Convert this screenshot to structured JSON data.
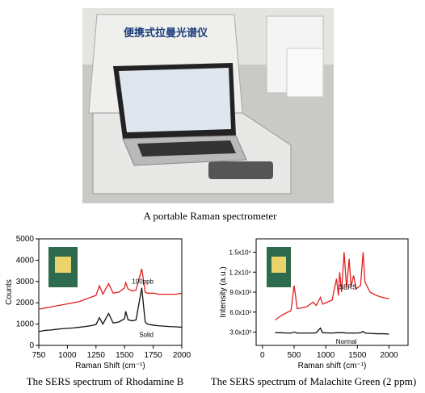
{
  "photo": {
    "case_label": "便携式拉曼光谱仪",
    "caption": "A portable Raman spectrometer"
  },
  "chart_data": [
    {
      "type": "line",
      "title": "The SERS spectrum of Rhodamine B",
      "x_label": "Raman Shift (cm⁻¹)",
      "y_label": "Counts",
      "xlim": [
        750,
        2000
      ],
      "xticks": [
        750,
        1000,
        1250,
        1500,
        1750,
        2000
      ],
      "ylim": [
        0,
        5000
      ],
      "yticks": [
        0,
        1000,
        2000,
        3000,
        4000,
        5000
      ],
      "x": [
        750,
        800,
        850,
        900,
        950,
        1000,
        1050,
        1100,
        1150,
        1200,
        1250,
        1280,
        1310,
        1360,
        1400,
        1450,
        1500,
        1510,
        1530,
        1570,
        1600,
        1650,
        1680,
        1700,
        1750,
        1800,
        1850,
        1900,
        1950,
        2000
      ],
      "series": [
        {
          "name": "100ppb",
          "color": "#e0201e",
          "values": [
            1700,
            1750,
            1800,
            1850,
            1900,
            1950,
            2000,
            2050,
            2150,
            2250,
            2350,
            2800,
            2400,
            2900,
            2450,
            2500,
            2700,
            2950,
            2650,
            2550,
            2600,
            3600,
            2500,
            2450,
            2450,
            2400,
            2400,
            2400,
            2400,
            2450
          ]
        },
        {
          "name": "Solid",
          "color": "#111111",
          "values": [
            650,
            700,
            720,
            750,
            780,
            800,
            820,
            850,
            880,
            920,
            980,
            1300,
            1000,
            1500,
            1050,
            1100,
            1250,
            1600,
            1200,
            1150,
            1200,
            2700,
            1100,
            1000,
            950,
            920,
            900,
            880,
            870,
            850
          ]
        }
      ]
    },
    {
      "type": "line",
      "title": "The SERS spectrum of Malachite Green (2 ppm)",
      "x_label": "Raman shift (cm⁻¹)",
      "y_label": "Intensity (a.u.)",
      "xlim": [
        -100,
        2300
      ],
      "xticks": [
        0,
        500,
        1000,
        1500,
        2000
      ],
      "ylim": [
        1000,
        17000
      ],
      "yticks": [
        {
          "value": 3000,
          "label": "3.0x10³"
        },
        {
          "value": 6000,
          "label": "6.0x10³"
        },
        {
          "value": 9000,
          "label": "9.0x10³"
        },
        {
          "value": 12000,
          "label": "1.2x10⁴"
        },
        {
          "value": 15000,
          "label": "1.5x10⁴"
        }
      ],
      "x": [
        200,
        300,
        400,
        450,
        500,
        550,
        700,
        800,
        850,
        915,
        950,
        1100,
        1170,
        1200,
        1220,
        1250,
        1290,
        1330,
        1370,
        1400,
        1440,
        1480,
        1550,
        1590,
        1620,
        1700,
        1800,
        1900,
        2000
      ],
      "series": [
        {
          "name": "SERS",
          "color": "#e0201e",
          "values": [
            4800,
            5500,
            6000,
            6200,
            10000,
            6500,
            6800,
            7500,
            7000,
            8200,
            7200,
            7800,
            11000,
            8500,
            12000,
            9000,
            15000,
            9500,
            14000,
            9800,
            11500,
            9500,
            10000,
            15000,
            10500,
            9000,
            8500,
            8200,
            8000
          ]
        },
        {
          "name": "Normal",
          "color": "#111111",
          "values": [
            2900,
            2900,
            2850,
            2850,
            3000,
            2850,
            2850,
            2850,
            2900,
            3600,
            2900,
            2850,
            2900,
            2900,
            2900,
            2900,
            2900,
            2850,
            2850,
            2850,
            2850,
            2850,
            2900,
            3100,
            2850,
            2800,
            2750,
            2750,
            2700
          ]
        }
      ]
    }
  ]
}
